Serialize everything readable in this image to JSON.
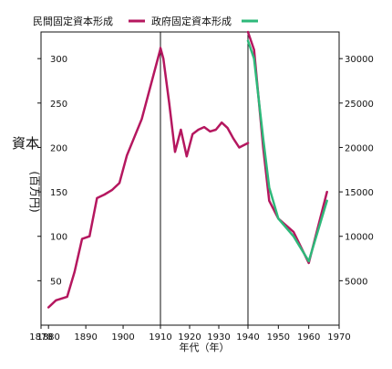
{
  "chart_data": {
    "type": "line",
    "ylabel": "資本",
    "ylabel_unit": "(百万円)",
    "xlabel": "年代（年）",
    "colors": {
      "private": "#b5175f",
      "government": "#2eb87a"
    },
    "legend": [
      {
        "label": "民間固定資本形成",
        "series": "private"
      },
      {
        "label": "政府固定資本形成",
        "series": "government"
      }
    ],
    "x_ticks": [
      1878,
      1880,
      1890,
      1900,
      1910,
      1920,
      1930,
      1940,
      1950,
      1960,
      1970
    ],
    "panels": [
      {
        "xlim": [
          1878,
          1910
        ],
        "ylim": [
          0,
          330
        ],
        "yticks": [
          50,
          100,
          150,
          200,
          250,
          300
        ],
        "yaxis_side": "left",
        "series": [
          {
            "key": "private",
            "x": [
              1880,
              1882,
              1885,
              1887,
              1889,
              1891,
              1893,
              1895,
              1897,
              1899,
              1901,
              1905,
              1910
            ],
            "y": [
              20,
              28,
              32,
              60,
              97,
              100,
              143,
              147,
              152,
              160,
              191,
              232,
              311
            ]
          }
        ]
      },
      {
        "xlim": [
          1910,
          1940
        ],
        "ylim": [
          0,
          330
        ],
        "series": [
          {
            "key": "private",
            "x": [
              1910,
              1911,
              1913,
              1915,
              1917,
              1919,
              1921,
              1923,
              1925,
              1927,
              1929,
              1931,
              1933,
              1935,
              1937,
              1940
            ],
            "y": [
              312,
              300,
              250,
              195,
              220,
              190,
              215,
              220,
              223,
              218,
              220,
              228,
              222,
              210,
              200,
              205
            ]
          }
        ]
      },
      {
        "xlim": [
          1940,
          1970
        ],
        "ylim": [
          0,
          33000
        ],
        "yticks": [
          5000,
          10000,
          15000,
          20000,
          25000,
          30000
        ],
        "yaxis_side": "right",
        "series": [
          {
            "key": "private",
            "x": [
              1940,
              1942,
              1945,
              1947,
              1950,
              1955,
              1960,
              1966
            ],
            "y": [
              33000,
              31000,
              20000,
              14000,
              12000,
              10500,
              7000,
              15000
            ]
          },
          {
            "key": "government",
            "x": [
              1940,
              1942,
              1945,
              1947,
              1950,
              1955,
              1960,
              1966
            ],
            "y": [
              32000,
              30000,
              21000,
              15500,
              12000,
              10000,
              7200,
              14000
            ]
          }
        ]
      }
    ]
  }
}
